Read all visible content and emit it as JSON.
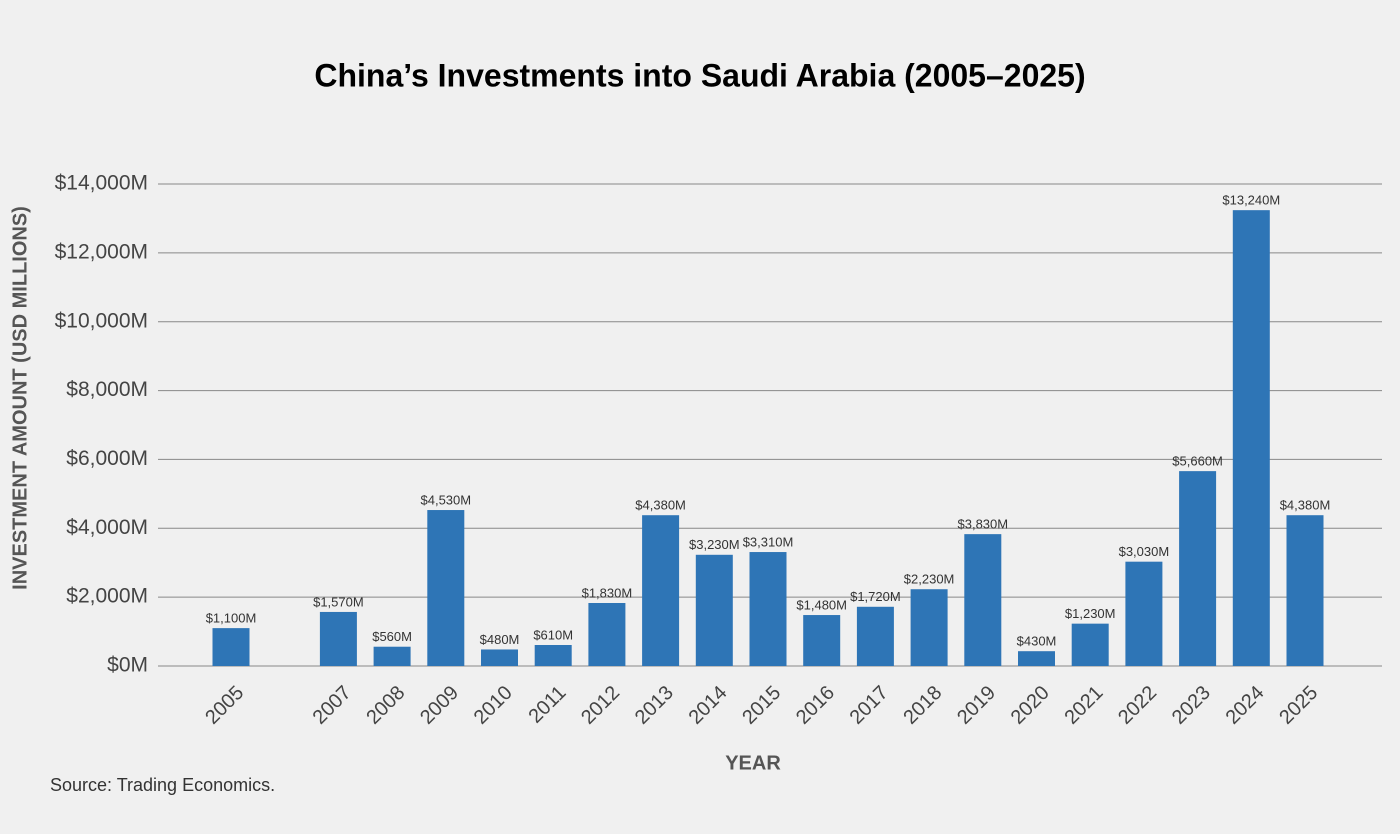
{
  "chart_data": {
    "type": "bar",
    "title": "China’s Investments into Saudi Arabia (2005–2025)",
    "y_label": "INVESTMENT AMOUNT (USD MILLIONS)",
    "x_label": "YEAR",
    "source": "Source: Trading Economics.",
    "categories": [
      "2005",
      null,
      "2007",
      "2008",
      "2009",
      "2010",
      "2011",
      "2012",
      "2013",
      "2014",
      "2015",
      "2016",
      "2017",
      "2018",
      "2019",
      "2020",
      "2021",
      "2022",
      "2023",
      "2024",
      "2025"
    ],
    "values": [
      1100,
      null,
      1570,
      560,
      4530,
      480,
      610,
      1830,
      4380,
      3230,
      3310,
      1480,
      1720,
      2230,
      3830,
      430,
      1230,
      3030,
      5660,
      13240,
      4380
    ],
    "value_labels": [
      "$1,100M",
      null,
      "$1,570M",
      "$560M",
      "$4,530M",
      "$480M",
      "$610M",
      "$1,830M",
      "$4,380M",
      "$3,230M",
      "$3,310M",
      "$1,480M",
      "$1,720M",
      "$2,230M",
      "$3,830M",
      "$430M",
      "$1,230M",
      "$3,030M",
      "$5,660M",
      "$13,240M",
      "$4,380M"
    ],
    "color": "#2e75b6",
    "ylim": [
      0,
      14000
    ],
    "yticks": [
      {
        "value": 0,
        "label": "$0M"
      },
      {
        "value": 2000,
        "label": "$2,000M"
      },
      {
        "value": 4000,
        "label": "$4,000M"
      },
      {
        "value": 6000,
        "label": "$6,000M"
      },
      {
        "value": 8000,
        "label": "$8,000M"
      },
      {
        "value": 10000,
        "label": "$10,000M"
      },
      {
        "value": 12000,
        "label": "$12,000M"
      },
      {
        "value": 14000,
        "label": "$14,000M"
      }
    ],
    "grid": true
  }
}
